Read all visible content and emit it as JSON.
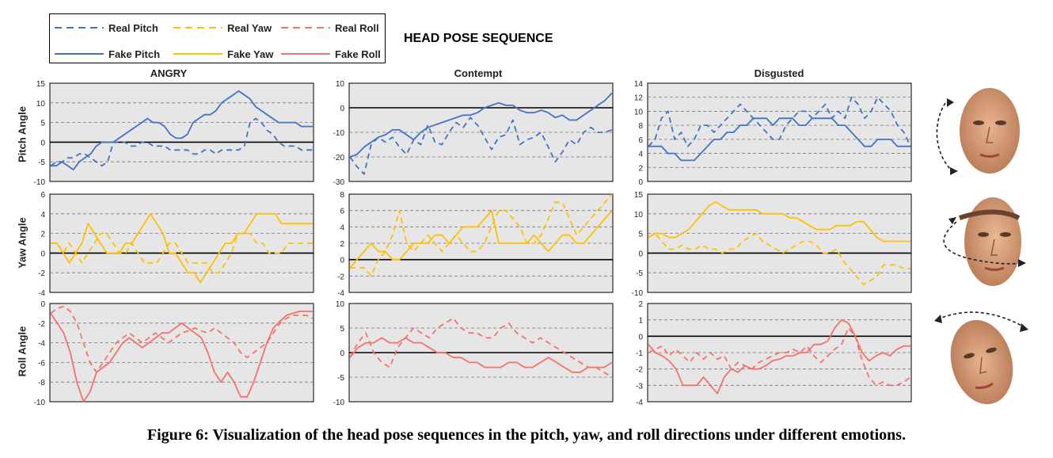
{
  "legend": {
    "real_pitch": "Real Pitch",
    "real_yaw": "Real Yaw",
    "real_roll": "Real Roll",
    "fake_pitch": "Fake Pitch",
    "fake_yaw": "Fake Yaw",
    "fake_roll": "Fake Roll"
  },
  "title": "HEAD POSE SEQUENCE",
  "columns": [
    "ANGRY",
    "Contempt",
    "Disgusted"
  ],
  "rows": [
    "Pitch Angle",
    "Yaw Angle",
    "Roll Angle"
  ],
  "caption": "Figure 6: Visualization of the head pose sequences in the pitch, yaw, and roll directions under different emotions.",
  "colors": {
    "pitch": "#4472C4",
    "yaw": "#FFC000",
    "roll": "#F4726B",
    "panel_bg": "#E6E6E6"
  },
  "chart_data": [
    {
      "type": "line",
      "emotion": "ANGRY",
      "angle": "Pitch Angle",
      "ylim": [
        -10,
        15
      ],
      "yticks": [
        -10,
        -5,
        0,
        5,
        10,
        15
      ],
      "series": [
        {
          "name": "Real Pitch",
          "values": [
            -6,
            -5,
            -5,
            -4,
            -4,
            -3,
            -3,
            -4,
            -5,
            -6,
            -5,
            0,
            0,
            0,
            -1,
            -1,
            0,
            0,
            -1,
            -1,
            -1,
            -2,
            -2,
            -2,
            -2,
            -3,
            -3,
            -2,
            -2,
            -3,
            -2,
            -2,
            -2,
            -2,
            -1,
            5,
            6,
            5,
            3,
            2,
            0,
            -1,
            -1,
            -1,
            -2,
            -2,
            -2
          ]
        },
        {
          "name": "Fake Pitch",
          "values": [
            -6,
            -6,
            -5,
            -6,
            -7,
            -5,
            -4,
            -3,
            -1,
            0,
            0,
            0,
            1,
            2,
            3,
            4,
            5,
            6,
            5,
            5,
            4,
            2,
            1,
            1,
            2,
            5,
            6,
            7,
            7,
            8,
            10,
            11,
            12,
            13,
            12,
            11,
            9,
            8,
            7,
            6,
            5,
            5,
            5,
            5,
            4,
            4,
            4
          ]
        }
      ]
    },
    {
      "type": "line",
      "emotion": "Contempt",
      "angle": "Pitch Angle",
      "ylim": [
        -30,
        10
      ],
      "yticks": [
        -30,
        -20,
        -10,
        0,
        10
      ],
      "series": [
        {
          "name": "Real Pitch",
          "values": [
            -20,
            -24,
            -27,
            -15,
            -12,
            -14,
            -12,
            -16,
            -19,
            -13,
            -15,
            -7,
            -14,
            -15,
            -10,
            -6,
            -8,
            -4,
            -7,
            -12,
            -17,
            -12,
            -11,
            -5,
            -15,
            -13,
            -12,
            -10,
            -16,
            -22,
            -18,
            -13,
            -15,
            -10,
            -8,
            -10,
            -10,
            -9
          ]
        },
        {
          "name": "Fake Pitch",
          "values": [
            -20,
            -19,
            -16,
            -14,
            -12,
            -11,
            -9,
            -9,
            -11,
            -13,
            -10,
            -8,
            -7,
            -6,
            -5,
            -4,
            -3,
            -3,
            -2,
            0,
            1,
            2,
            1,
            1,
            -1,
            -2,
            -2,
            -1,
            -2,
            -4,
            -3,
            -5,
            -5,
            -3,
            -1,
            1,
            3,
            6
          ]
        }
      ]
    },
    {
      "type": "line",
      "emotion": "Disgusted",
      "angle": "Pitch Angle",
      "ylim": [
        0,
        14
      ],
      "yticks": [
        0,
        2,
        4,
        6,
        8,
        10,
        12,
        14
      ],
      "series": [
        {
          "name": "Real Pitch",
          "values": [
            5,
            6,
            9,
            10,
            6,
            7,
            5,
            6,
            8,
            8,
            7,
            8,
            9,
            10,
            11,
            10,
            9,
            8,
            7,
            6,
            6,
            8,
            9,
            10,
            10,
            9,
            10,
            11,
            9,
            10,
            9,
            12,
            11,
            9,
            10,
            12,
            11,
            10,
            8,
            7,
            5
          ]
        },
        {
          "name": "Fake Pitch",
          "values": [
            5,
            5,
            5,
            4,
            4,
            3,
            3,
            3,
            4,
            5,
            6,
            6,
            7,
            7,
            8,
            8,
            9,
            9,
            9,
            8,
            9,
            9,
            9,
            8,
            8,
            9,
            9,
            9,
            9,
            8,
            8,
            7,
            6,
            5,
            5,
            6,
            6,
            6,
            5,
            5,
            5
          ]
        }
      ]
    },
    {
      "type": "line",
      "emotion": "ANGRY",
      "angle": "Yaw Angle",
      "ylim": [
        -4,
        6
      ],
      "yticks": [
        -4,
        -2,
        0,
        2,
        4,
        6
      ],
      "series": [
        {
          "name": "Real Yaw",
          "values": [
            1,
            1,
            0,
            1,
            0,
            -1,
            0,
            1,
            2,
            2,
            1,
            0,
            0,
            1,
            0,
            -1,
            -1,
            -1,
            0,
            1,
            1,
            0,
            -1,
            -1,
            -1,
            -1,
            -2,
            -2,
            -1,
            0,
            2,
            2,
            2,
            1,
            1,
            0,
            0,
            0,
            1,
            1,
            1,
            1,
            1
          ]
        },
        {
          "name": "Fake Yaw",
          "values": [
            1,
            1,
            0,
            -1,
            0,
            1,
            3,
            2,
            1,
            0,
            0,
            0,
            1,
            1,
            2,
            3,
            4,
            3,
            2,
            0,
            0,
            -1,
            -2,
            -2,
            -3,
            -2,
            -1,
            0,
            1,
            1,
            2,
            2,
            3,
            4,
            4,
            4,
            4,
            3,
            3,
            3,
            3,
            3,
            3
          ]
        }
      ]
    },
    {
      "type": "line",
      "emotion": "Contempt",
      "angle": "Yaw Angle",
      "ylim": [
        -4,
        8
      ],
      "yticks": [
        -4,
        -2,
        0,
        2,
        4,
        6,
        8
      ],
      "series": [
        {
          "name": "Real Yaw",
          "values": [
            -1,
            -1,
            -1,
            -2,
            0,
            1,
            3,
            6,
            2,
            1,
            2,
            3,
            2,
            1,
            2,
            3,
            2,
            1,
            1,
            2,
            4,
            6,
            6,
            5,
            4,
            2,
            2,
            3,
            5,
            7,
            7,
            5,
            3,
            4,
            5,
            6,
            7,
            8
          ]
        },
        {
          "name": "Fake Yaw",
          "values": [
            -1,
            0,
            1,
            2,
            1,
            1,
            0,
            0,
            1,
            2,
            2,
            2,
            3,
            3,
            2,
            3,
            4,
            4,
            4,
            5,
            6,
            2,
            2,
            2,
            2,
            2,
            3,
            2,
            1,
            2,
            3,
            3,
            2,
            2,
            3,
            4,
            5,
            6
          ]
        }
      ]
    },
    {
      "type": "line",
      "emotion": "Disgusted",
      "angle": "Yaw Angle",
      "ylim": [
        -10,
        15
      ],
      "yticks": [
        -10,
        -5,
        0,
        5,
        10,
        15
      ],
      "series": [
        {
          "name": "Real Yaw",
          "values": [
            4,
            5,
            3,
            1,
            1,
            2,
            1,
            1,
            2,
            1,
            1,
            0,
            1,
            1,
            3,
            4,
            5,
            3,
            2,
            1,
            0,
            1,
            2,
            3,
            3,
            2,
            0,
            0,
            1,
            -2,
            -4,
            -6,
            -8,
            -7,
            -6,
            -3,
            -3,
            -3,
            -4,
            -4
          ]
        },
        {
          "name": "Fake Yaw",
          "values": [
            4,
            5,
            5,
            4,
            4,
            5,
            6,
            8,
            10,
            12,
            13,
            12,
            11,
            11,
            11,
            11,
            11,
            10,
            10,
            10,
            10,
            9,
            9,
            8,
            7,
            6,
            6,
            6,
            7,
            7,
            7,
            8,
            8,
            6,
            4,
            3,
            3,
            3,
            3,
            3
          ]
        }
      ]
    },
    {
      "type": "line",
      "emotion": "ANGRY",
      "angle": "Roll Angle",
      "ylim": [
        -10,
        0
      ],
      "yticks": [
        -10,
        -8,
        -6,
        -4,
        -2,
        0
      ],
      "series": [
        {
          "name": "Real Roll",
          "values": [
            -1,
            -0.5,
            -0.3,
            -0.8,
            -2,
            -4,
            -6,
            -7,
            -6,
            -5,
            -4,
            -3.5,
            -3,
            -3.5,
            -4,
            -3.5,
            -3,
            -3.5,
            -4,
            -3.5,
            -3,
            -2.8,
            -2.5,
            -2.8,
            -3,
            -2.5,
            -3,
            -3.5,
            -4,
            -5,
            -5.5,
            -5,
            -4.5,
            -4,
            -3,
            -2,
            -1.5,
            -1.2,
            -1.2,
            -1.2,
            -1.5
          ]
        },
        {
          "name": "Fake Roll",
          "values": [
            -1,
            -2,
            -3,
            -5,
            -8,
            -10,
            -9,
            -7,
            -6.5,
            -6,
            -5,
            -4,
            -3.5,
            -4,
            -4.5,
            -4,
            -3.5,
            -3,
            -3,
            -2.5,
            -2,
            -2.5,
            -3,
            -3.5,
            -5,
            -7,
            -8,
            -7,
            -8,
            -9.5,
            -9.5,
            -8,
            -6,
            -4,
            -2.5,
            -1.8,
            -1.2,
            -1,
            -0.8,
            -0.8,
            -0.8
          ]
        }
      ]
    },
    {
      "type": "line",
      "emotion": "Contempt",
      "angle": "Roll Angle",
      "ylim": [
        -10,
        10
      ],
      "yticks": [
        -10,
        -5,
        0,
        5,
        10
      ],
      "series": [
        {
          "name": "Real Roll",
          "values": [
            -1,
            2,
            4,
            0,
            -2,
            -3,
            1,
            3,
            5,
            4,
            3,
            5,
            6,
            7,
            5,
            4,
            4,
            3,
            3,
            5,
            6,
            4,
            3,
            2,
            3,
            2,
            1,
            0,
            -1,
            -2,
            -3,
            -3,
            -4,
            -5
          ]
        },
        {
          "name": "Fake Roll",
          "values": [
            -1,
            1,
            2,
            2,
            3,
            2,
            2,
            3,
            2,
            2,
            1,
            0,
            0,
            -1,
            -1,
            -2,
            -2,
            -3,
            -3,
            -3,
            -2,
            -2,
            -3,
            -3,
            -2,
            -1,
            -2,
            -3,
            -4,
            -4,
            -3,
            -3,
            -3,
            -2
          ]
        }
      ]
    },
    {
      "type": "line",
      "emotion": "Disgusted",
      "angle": "Roll Angle",
      "ylim": [
        -4,
        2
      ],
      "yticks": [
        -4,
        -3,
        -2,
        -1,
        0,
        1,
        2
      ],
      "series": [
        {
          "name": "Real Roll",
          "values": [
            -1,
            -0.8,
            -0.6,
            -1.2,
            -0.8,
            -1.2,
            -1.6,
            -1,
            -1.4,
            -1,
            -1.4,
            -1.2,
            -2,
            -1.6,
            -1.8,
            -2,
            -1.6,
            -1.4,
            -1.2,
            -1,
            -1,
            -0.8,
            -1,
            -0.6,
            -1.2,
            -1.6,
            -1.2,
            -0.8,
            -0.5,
            0.5,
            0,
            -1.5,
            -2.5,
            -3,
            -2.8,
            -3,
            -3,
            -2.8,
            -2.5
          ]
        },
        {
          "name": "Fake Roll",
          "values": [
            -0.5,
            -1,
            -1.2,
            -1.5,
            -2,
            -3,
            -3,
            -3,
            -2.5,
            -3,
            -3.5,
            -2.5,
            -2,
            -2.2,
            -1.8,
            -2,
            -2,
            -1.8,
            -1.5,
            -1.4,
            -1.2,
            -1.2,
            -1,
            -1,
            -0.5,
            -0.5,
            -0.3,
            0.5,
            1,
            0.8,
            0,
            -1,
            -1.5,
            -1.2,
            -1,
            -1.2,
            -0.8,
            -0.6,
            -0.6
          ]
        }
      ]
    }
  ]
}
